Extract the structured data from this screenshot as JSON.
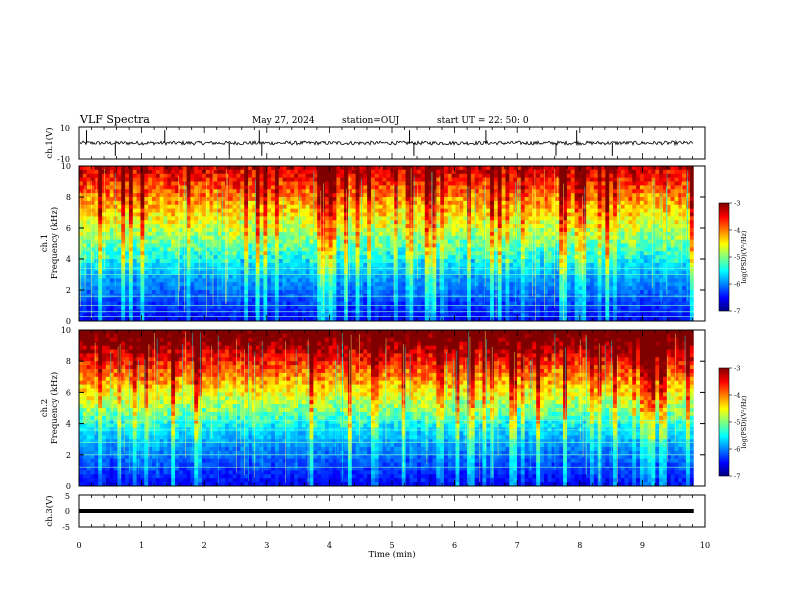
{
  "header": {
    "title": "VLF Spectra",
    "date": "May 27, 2024",
    "station": "station=OUJ",
    "start": "start  UT  =   22: 50: 0"
  },
  "chart_data": [
    {
      "panel": "ch1-waveform",
      "type": "line",
      "ylabel": "ch.1(V)",
      "ylim": [
        -10,
        10
      ],
      "yticks": [
        "10",
        "-10"
      ],
      "baseline": 0,
      "noise_amplitude": 1.2,
      "spike_times_min": [
        0.12,
        0.58,
        1.37,
        2.4,
        2.88,
        2.92,
        5.28,
        5.35,
        6.5,
        7.62,
        7.95,
        8.52
      ]
    },
    {
      "panel": "ch1-spectrogram",
      "type": "heatmap",
      "ylabel": "ch.1",
      "ylabel2": "Frequency (kHz)",
      "ylim": [
        0,
        10
      ],
      "yticks": [
        "0",
        "2",
        "4",
        "6",
        "8",
        "10"
      ],
      "colorbar": {
        "min": -7,
        "max": -3,
        "ticks": [
          "-3",
          "-4",
          "-5",
          "-6",
          "-7"
        ],
        "label": "log(PSD)(V²/Hz)"
      },
      "line_freqs_khz": [
        0.3,
        0.6,
        1.0,
        1.6,
        3.0,
        3.4
      ]
    },
    {
      "panel": "ch2-spectrogram",
      "type": "heatmap",
      "ylabel": "ch.2",
      "ylabel2": "Frequency (kHz)",
      "ylim": [
        0,
        10
      ],
      "yticks": [
        "0",
        "2",
        "4",
        "6",
        "8",
        "10"
      ],
      "colorbar": {
        "min": -7,
        "max": -3,
        "ticks": [
          "-3",
          "-4",
          "-5",
          "-6",
          "-7"
        ],
        "label": "log(PSD)(V²/Hz)"
      },
      "line_freqs_khz": [
        1.2,
        2.0,
        2.8,
        3.6,
        4.2
      ]
    },
    {
      "panel": "ch3-waveform",
      "type": "line",
      "ylabel": "ch.3(V)",
      "ylim": [
        -5,
        5
      ],
      "yticks": [
        "5",
        "0",
        "-5"
      ],
      "baseline": 0,
      "noise_amplitude": 0
    }
  ],
  "xaxis": {
    "label": "Time (min)",
    "xlim": [
      0,
      10
    ],
    "ticks": [
      "0",
      "1",
      "2",
      "3",
      "4",
      "5",
      "6",
      "7",
      "8",
      "9",
      "10"
    ],
    "data_end_min": 9.82
  },
  "colors": {
    "jet": [
      "#000080",
      "#0000ff",
      "#0080ff",
      "#00ffff",
      "#80ff80",
      "#ffff00",
      "#ff8000",
      "#ff0000",
      "#800000"
    ]
  }
}
